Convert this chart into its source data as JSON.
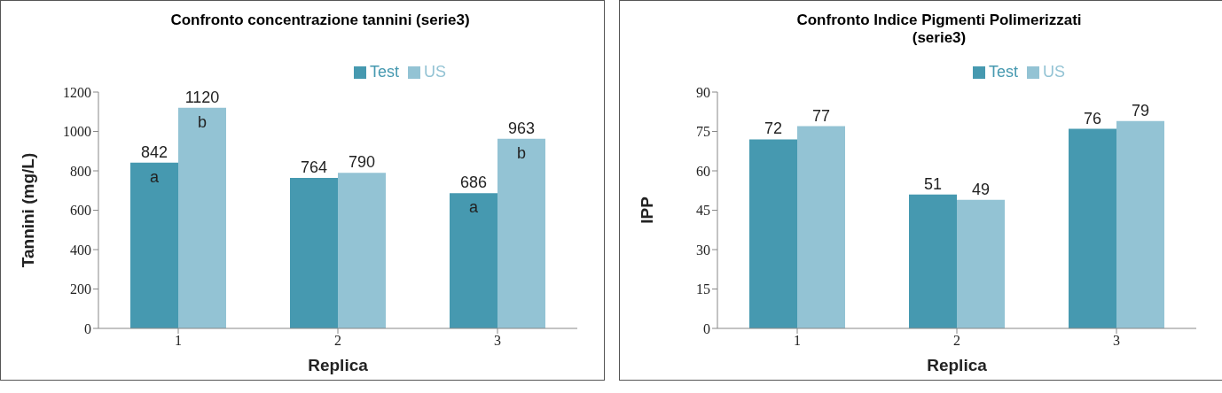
{
  "chart_data": [
    {
      "type": "bar",
      "title": "Confronto concentrazione tannini (serie3)",
      "xlabel": "Replica",
      "ylabel": "Tannini (mg/L)",
      "categories": [
        "1",
        "2",
        "3"
      ],
      "series": [
        {
          "name": "Test",
          "color": "#4699b0",
          "values": [
            842,
            764,
            686
          ]
        },
        {
          "name": "US",
          "color": "#93c3d4",
          "values": [
            1120,
            790,
            963
          ]
        }
      ],
      "ylim": [
        0,
        1200
      ],
      "yticks": [
        0,
        200,
        400,
        600,
        800,
        1000,
        1200
      ],
      "data_labels": true,
      "legend": "top",
      "annotations": [
        {
          "text": "a",
          "x": "1",
          "y": 842
        },
        {
          "text": "b",
          "x": "1",
          "y": 1120
        },
        {
          "text": "a",
          "x": "3",
          "y": 686
        },
        {
          "text": "b",
          "x": "3",
          "y": 963
        }
      ]
    },
    {
      "type": "bar",
      "title": "Confronto Indice Pigmenti Polimerizzati (serie3)",
      "xlabel": "Replica",
      "ylabel": "IPP",
      "categories": [
        "1",
        "2",
        "3"
      ],
      "series": [
        {
          "name": "Test",
          "color": "#4699b0",
          "values": [
            72,
            51,
            76
          ]
        },
        {
          "name": "US",
          "color": "#93c3d4",
          "values": [
            77,
            49,
            79
          ]
        }
      ],
      "ylim": [
        0,
        90
      ],
      "yticks": [
        0,
        15,
        30,
        45,
        60,
        75,
        90
      ],
      "data_labels": true,
      "legend": "top"
    }
  ]
}
